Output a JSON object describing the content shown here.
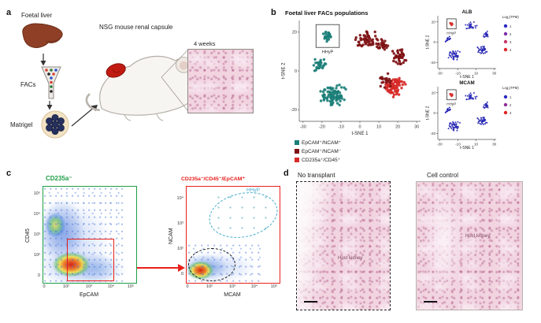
{
  "panel_a": {
    "label": "a",
    "foetal_liver": "Foetal liver",
    "facs": "FACs",
    "matrigel": "Matrigel",
    "mouse_caption": "NSG mouse renal capsule",
    "inset_caption": "4 weeks"
  },
  "panel_b": {
    "label": "b"
  },
  "chart_data": {
    "main": {
      "type": "scatter",
      "title": "Foetal liver FACs populations",
      "xlabel": "t-SNE 1",
      "ylabel": "t-SNE 2",
      "xlim": [
        -32,
        32
      ],
      "ylim": [
        -26,
        26
      ],
      "xticks": [
        -30,
        -20,
        -10,
        0,
        10,
        20,
        30
      ],
      "yticks": [
        -20,
        0,
        20
      ],
      "legend_position": "bottom-left",
      "clusters": [
        {
          "name": "HHyP",
          "label": "HHyP",
          "boxed": true,
          "color": "#1b7f78",
          "cx": -17,
          "cy": 18,
          "sx": 2.2,
          "sy": 1.9,
          "n": 26
        },
        {
          "name": "EpCAM+/NCAM+ small",
          "color": "#1b7f78",
          "cx": -21,
          "cy": 3,
          "sx": 2.2,
          "sy": 2.8,
          "n": 28
        },
        {
          "name": "EpCAM+/NCAM+ main",
          "color": "#1b7f78",
          "cx": -14,
          "cy": -13,
          "sx": 4.2,
          "sy": 3.6,
          "n": 95
        },
        {
          "name": "EpCAM+/NCAM- upper",
          "color": "#7e1113",
          "cx": 5,
          "cy": 16,
          "sx": 4.8,
          "sy": 2.6,
          "n": 55
        },
        {
          "name": "EpCAM+/NCAM- bridge",
          "color": "#7e1113",
          "cx": 12,
          "cy": 13,
          "sx": 2.5,
          "sy": 2.0,
          "n": 25
        },
        {
          "name": "EpCAM+/NCAM- right",
          "color": "#7e1113",
          "cx": 21,
          "cy": 7,
          "sx": 2.6,
          "sy": 3.2,
          "n": 40
        },
        {
          "name": "CD235a+/CD45+",
          "color": "#d62a28",
          "cx": 18,
          "cy": -8,
          "sx": 4.0,
          "sy": 3.2,
          "n": 75
        },
        {
          "name": "EpCAM+/NCAM- lower mix",
          "color": "#7e1113",
          "cx": 14,
          "cy": -5,
          "sx": 2.6,
          "sy": 2.2,
          "n": 22
        }
      ],
      "legend": [
        {
          "label": "EpCAM⁺/NCAM⁺",
          "color": "#1b7f78"
        },
        {
          "label": "EpCAM⁺/NCAM⁻",
          "color": "#7e1113"
        },
        {
          "label": "CD235a⁺/CD45⁺",
          "color": "#d62a28"
        }
      ]
    },
    "alb": {
      "type": "scatter",
      "title": "ALB",
      "xlabel": "t-SNE 1",
      "ylabel": "t-SNE 2",
      "xlim": [
        -32,
        32
      ],
      "ylim": [
        -26,
        26
      ],
      "xticks": [
        -30,
        -10,
        10,
        30
      ],
      "yticks": [
        -20,
        0,
        20
      ],
      "clusters": [
        {
          "label": "HHyP",
          "boxed": true,
          "color": "#d62a28",
          "cx": -17,
          "cy": 18,
          "sx": 1.8,
          "sy": 1.6,
          "n": 12
        },
        {
          "color": "#2525b4",
          "cx": -21,
          "cy": 3,
          "sx": 2.0,
          "sy": 2.4,
          "n": 14
        },
        {
          "color": "#2525b4",
          "cx": -14,
          "cy": -13,
          "sx": 4.0,
          "sy": 3.4,
          "n": 42
        },
        {
          "color": "#2525b4",
          "cx": 5,
          "cy": 16,
          "sx": 4.4,
          "sy": 2.4,
          "n": 26
        },
        {
          "color": "#2525b4",
          "cx": 21,
          "cy": 7,
          "sx": 2.4,
          "sy": 3.0,
          "n": 18
        },
        {
          "color": "#2525b4",
          "cx": 17,
          "cy": -8,
          "sx": 3.8,
          "sy": 3.0,
          "n": 34
        }
      ],
      "scale": {
        "label": "Log₂(TPM)",
        "ticks": [
          "1",
          "2",
          "3",
          "4"
        ],
        "colors": [
          "#2a2ac4",
          "#7c2ba8",
          "#c23a6a",
          "#e02222"
        ]
      }
    },
    "mcam": {
      "type": "scatter",
      "title": "MCAM",
      "xlabel": "t-SNE 1",
      "ylabel": "t-SNE 2",
      "xlim": [
        -32,
        32
      ],
      "ylim": [
        -26,
        26
      ],
      "xticks": [
        -30,
        -10,
        10,
        30
      ],
      "yticks": [
        -20,
        0,
        20
      ],
      "clusters": [
        {
          "label": "HHyP",
          "boxed": true,
          "color": "#d62a28",
          "cx": -17,
          "cy": 18,
          "sx": 1.8,
          "sy": 1.6,
          "n": 12
        },
        {
          "color": "#2525b4",
          "cx": -21,
          "cy": 3,
          "sx": 2.0,
          "sy": 2.4,
          "n": 14
        },
        {
          "color": "#2525b4",
          "cx": -14,
          "cy": -13,
          "sx": 4.0,
          "sy": 3.4,
          "n": 42
        },
        {
          "color": "#2525b4",
          "cx": 5,
          "cy": 16,
          "sx": 4.4,
          "sy": 2.4,
          "n": 26
        },
        {
          "color": "#2525b4",
          "cx": 21,
          "cy": 7,
          "sx": 2.4,
          "sy": 3.0,
          "n": 18
        },
        {
          "color": "#2525b4",
          "cx": 17,
          "cy": -8,
          "sx": 3.8,
          "sy": 3.0,
          "n": 34
        }
      ],
      "scale": {
        "label": "Log₂(TPM)",
        "ticks": [
          "1",
          "2",
          "3"
        ],
        "colors": [
          "#2a2ac4",
          "#8c2f96",
          "#e02222"
        ]
      }
    }
  },
  "panel_c": {
    "label": "c",
    "plot1": {
      "title": "CD235a⁻",
      "ylabel": "CD45",
      "xlabel": "EpCAM",
      "yticks": [
        "10⁵",
        "10⁴",
        "10³",
        "10²",
        "0"
      ],
      "xticks": [
        "0",
        "10²",
        "10³",
        "10⁴",
        "10⁵"
      ],
      "border_color": "#1e9e46",
      "gate_color": "#e8201c"
    },
    "plot2": {
      "title": "CD235a⁻/CD45⁻/EpCAM⁺",
      "ylabel": "NCAM",
      "xlabel": "MCAM",
      "yticks": [
        "10⁴",
        "10³",
        "10²",
        "0"
      ],
      "xticks": [
        "0",
        "10²",
        "10³",
        "10⁴",
        "10⁵"
      ],
      "border_color": "#e8201c",
      "hhyp_label": "HHyP",
      "hhyp_color": "#3fa8cc"
    }
  },
  "panel_d": {
    "label": "d",
    "images": [
      {
        "title": "No transplant",
        "annotation": "Host kidney"
      },
      {
        "title": "Cell control",
        "annotation": "Host kidney"
      }
    ]
  }
}
